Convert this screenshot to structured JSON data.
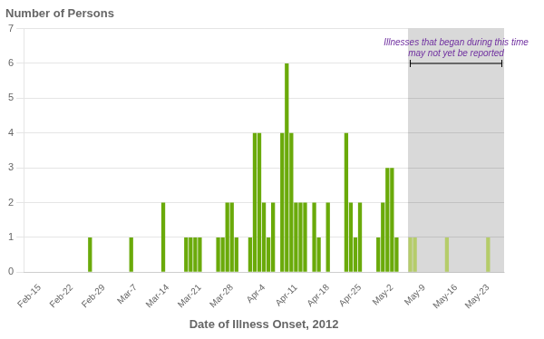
{
  "chart_data": {
    "type": "bar",
    "title": "Number of Persons",
    "x_label": "Date of Illness Onset, 2012",
    "categories": [
      null,
      null,
      null,
      "Feb-15",
      null,
      null,
      null,
      null,
      null,
      null,
      "Feb-22",
      null,
      null,
      null,
      null,
      null,
      null,
      "Feb-29",
      null,
      null,
      null,
      null,
      null,
      null,
      "Mar-7",
      null,
      null,
      null,
      null,
      null,
      null,
      "Mar-14",
      null,
      null,
      null,
      null,
      null,
      null,
      "Mar-21",
      null,
      null,
      null,
      null,
      null,
      null,
      "Mar-28",
      null,
      null,
      null,
      null,
      null,
      null,
      "Apr-4",
      null,
      null,
      null,
      null,
      null,
      null,
      "Apr-11",
      null,
      null,
      null,
      null,
      null,
      null,
      "Apr-18",
      null,
      null,
      null,
      null,
      null,
      null,
      "Apr-25",
      null,
      null,
      null,
      null,
      null,
      null,
      "May-2",
      null,
      null,
      null,
      null,
      null,
      null,
      "May-9",
      null,
      null,
      null,
      null,
      null,
      null,
      "May-16",
      null,
      null,
      null,
      null,
      null,
      null,
      "May-23",
      null,
      null,
      null
    ],
    "values": [
      0,
      0,
      0,
      0,
      0,
      0,
      0,
      0,
      0,
      0,
      0,
      0,
      0,
      0,
      1,
      0,
      0,
      0,
      0,
      0,
      0,
      0,
      0,
      1,
      0,
      0,
      0,
      0,
      0,
      0,
      2,
      0,
      0,
      0,
      0,
      1,
      1,
      1,
      1,
      0,
      0,
      0,
      1,
      1,
      2,
      2,
      1,
      0,
      0,
      1,
      4,
      4,
      2,
      1,
      2,
      0,
      4,
      6,
      4,
      2,
      2,
      2,
      0,
      2,
      1,
      0,
      2,
      0,
      0,
      0,
      4,
      2,
      1,
      2,
      0,
      0,
      0,
      1,
      2,
      3,
      3,
      1,
      0,
      0,
      1,
      1,
      0,
      0,
      0,
      0,
      0,
      0,
      1,
      0,
      0,
      0,
      0,
      0,
      0,
      0,
      0,
      1,
      0,
      0,
      0
    ],
    "colors": [
      "#6aaa0a",
      "#6aaa0a",
      "#6aaa0a",
      "#6aaa0a",
      "#6aaa0a",
      "#6aaa0a",
      "#6aaa0a",
      "#6aaa0a",
      "#6aaa0a",
      "#6aaa0a",
      "#6aaa0a",
      "#6aaa0a",
      "#6aaa0a",
      "#6aaa0a",
      "#6aaa0a",
      "#6aaa0a",
      "#6aaa0a",
      "#6aaa0a",
      "#6aaa0a",
      "#6aaa0a",
      "#6aaa0a",
      "#6aaa0a",
      "#6aaa0a",
      "#6aaa0a",
      "#6aaa0a",
      "#6aaa0a",
      "#6aaa0a",
      "#6aaa0a",
      "#6aaa0a",
      "#6aaa0a",
      "#6aaa0a",
      "#6aaa0a",
      "#6aaa0a",
      "#6aaa0a",
      "#6aaa0a",
      "#6aaa0a",
      "#6aaa0a",
      "#6aaa0a",
      "#6aaa0a",
      "#6aaa0a",
      "#6aaa0a",
      "#6aaa0a",
      "#6aaa0a",
      "#6aaa0a",
      "#6aaa0a",
      "#6aaa0a",
      "#6aaa0a",
      "#6aaa0a",
      "#6aaa0a",
      "#6aaa0a",
      "#6aaa0a",
      "#6aaa0a",
      "#6aaa0a",
      "#6aaa0a",
      "#6aaa0a",
      "#6aaa0a",
      "#6aaa0a",
      "#6aaa0a",
      "#6aaa0a",
      "#6aaa0a",
      "#6aaa0a",
      "#6aaa0a",
      "#6aaa0a",
      "#6aaa0a",
      "#6aaa0a",
      "#6aaa0a",
      "#6aaa0a",
      "#6aaa0a",
      "#6aaa0a",
      "#6aaa0a",
      "#6aaa0a",
      "#6aaa0a",
      "#6aaa0a",
      "#6aaa0a",
      "#6aaa0a",
      "#6aaa0a",
      "#6aaa0a",
      "#6aaa0a",
      "#6aaa0a",
      "#6aaa0a",
      "#6aaa0a",
      "#6aaa0a",
      "#6aaa0a",
      "#6aaa0a",
      "#b5cc6a",
      "#b5cc6a",
      "#b5cc6a",
      "#b5cc6a",
      "#b5cc6a",
      "#b5cc6a",
      "#b5cc6a",
      "#b5cc6a",
      "#b5cc6a",
      "#b5cc6a",
      "#b5cc6a",
      "#b5cc6a",
      "#b5cc6a",
      "#b5cc6a",
      "#b5cc6a",
      "#b5cc6a",
      "#b5cc6a",
      "#b5cc6a",
      "#b5cc6a",
      "#b5cc6a",
      "#b5cc6a"
    ],
    "ylim": [
      0,
      7
    ],
    "yticks": [
      0,
      1,
      2,
      3,
      4,
      5,
      6,
      7
    ],
    "grid": true,
    "annotation": {
      "text": "Illnesses that began during this time\nmay not yet be reported",
      "color": "#7030a0",
      "shade_color": "#d9d9d9",
      "span": [
        "May-9",
        "May-23"
      ],
      "y": 6
    }
  }
}
